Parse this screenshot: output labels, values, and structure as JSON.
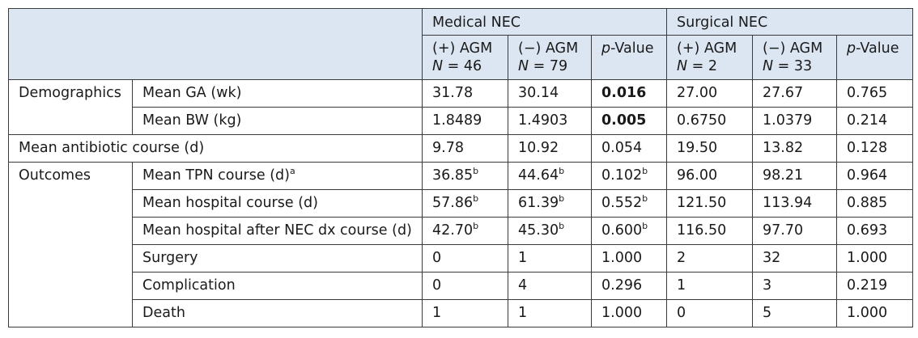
{
  "header": {
    "group_medical": "Medical NEC",
    "group_surgical": "Surgical NEC",
    "med_pos_label": "(+) AGM",
    "med_pos_n_letter": "N",
    "med_pos_n_value": " = 46",
    "med_neg_label": "(−) AGM",
    "med_neg_n_letter": "N",
    "med_neg_n_value": " = 79",
    "pval_p": "p",
    "pval_rest": "-Value",
    "sur_pos_label": "(+) AGM",
    "sur_pos_n_letter": "N",
    "sur_pos_n_value": " = 2",
    "sur_neg_label": "(−) AGM",
    "sur_neg_n_letter": "N",
    "sur_neg_n_value": " = 33"
  },
  "rows": {
    "demographics": "Demographics",
    "outcomes": "Outcomes",
    "antibiotic": "Mean antibiotic course (d)",
    "ga": {
      "label": "Mean GA (wk)",
      "m1": "31.78",
      "m2": "30.14",
      "mp": "0.016",
      "s1": "27.00",
      "s2": "27.67",
      "sp": "0.765"
    },
    "bw": {
      "label": "Mean BW (kg)",
      "m1": "1.8489",
      "m2": "1.4903",
      "mp": "0.005",
      "s1": "0.6750",
      "s2": "1.0379",
      "sp": "0.214"
    },
    "abx": {
      "m1": "9.78",
      "m2": "10.92",
      "mp": "0.054",
      "s1": "19.50",
      "s2": "13.82",
      "sp": "0.128"
    },
    "tpn": {
      "label": "Mean TPN course (d)",
      "sup": "a",
      "m1": "36.85",
      "m2": "44.64",
      "mp": "0.102",
      "s1": "96.00",
      "s2": "98.21",
      "sp": "0.964"
    },
    "hosp": {
      "label": "Mean hospital course (d)",
      "m1": "57.86",
      "m2": "61.39",
      "mp": "0.552",
      "s1": "121.50",
      "s2": "113.94",
      "sp": "0.885"
    },
    "hospnec": {
      "label": "Mean hospital after NEC dx course (d)",
      "m1": "42.70",
      "m2": "45.30",
      "mp": "0.600",
      "s1": "116.50",
      "s2": "97.70",
      "sp": "0.693"
    },
    "surgery": {
      "label": "Surgery",
      "m1": "0",
      "m2": "1",
      "mp": "1.000",
      "s1": "2",
      "s2": "32",
      "sp": "1.000"
    },
    "complication": {
      "label": "Complication",
      "m1": "0",
      "m2": "4",
      "mp": "0.296",
      "s1": "1",
      "s2": "3",
      "sp": "0.219"
    },
    "death": {
      "label": "Death",
      "m1": "1",
      "m2": "1",
      "mp": "1.000",
      "s1": "0",
      "s2": "5",
      "sp": "1.000"
    },
    "sup_b": "b"
  }
}
